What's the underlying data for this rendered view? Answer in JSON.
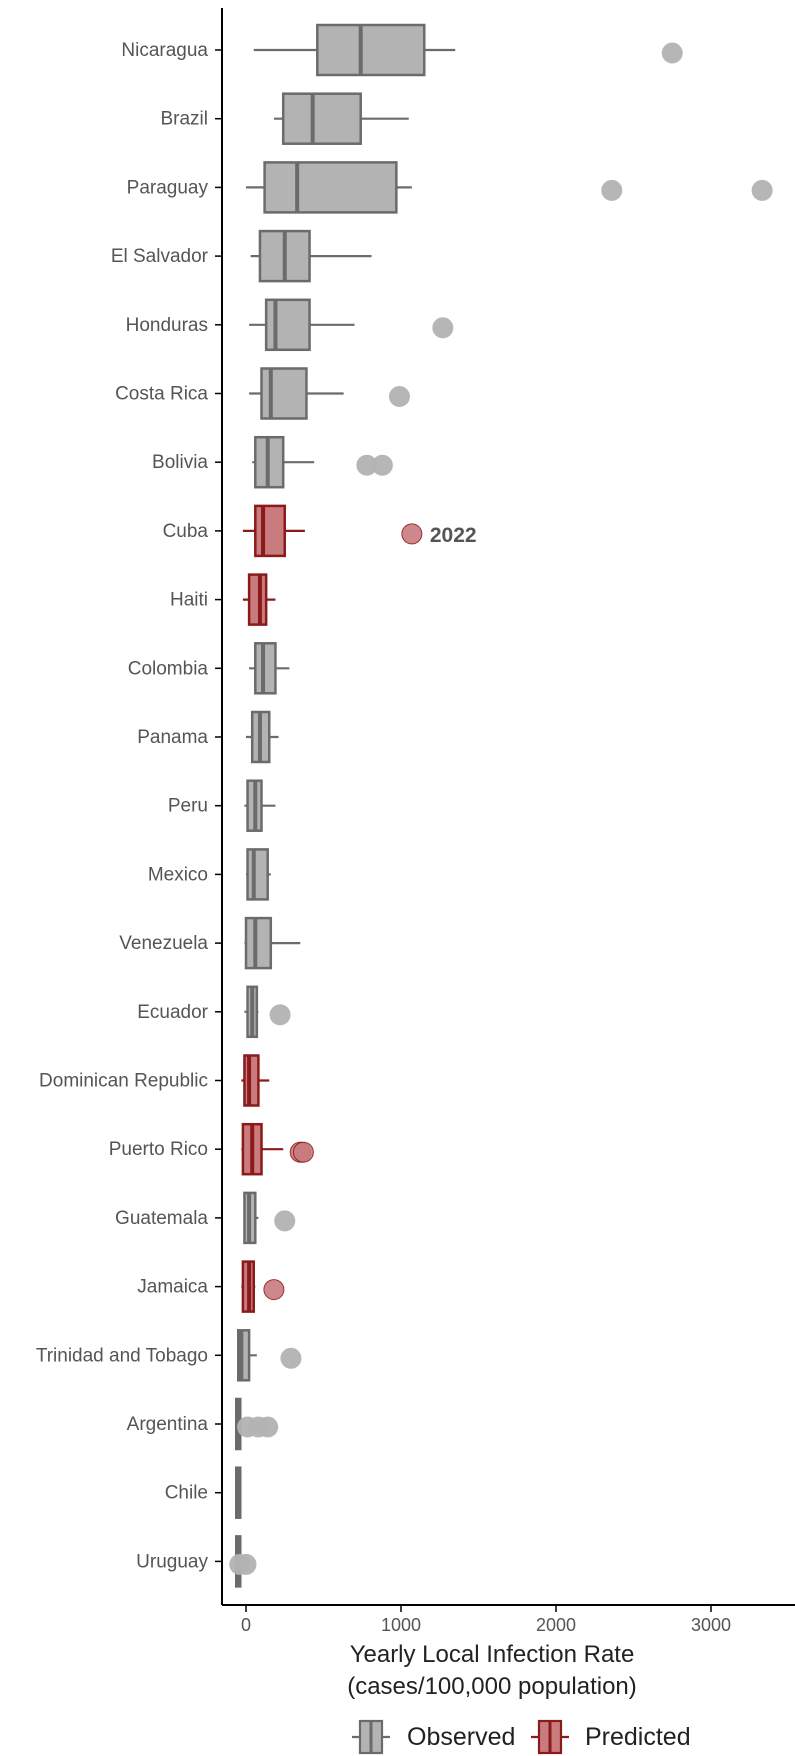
{
  "chart_data": {
    "type": "boxplot",
    "xlabel": [
      "Yearly Local Infection Rate",
      "(cases/100,000 population)"
    ],
    "xlim": [
      -150,
      3550
    ],
    "xticks": [
      0,
      1000,
      2000,
      3000
    ],
    "xtick_labels": [
      "0",
      "1000",
      "2000",
      "3000"
    ],
    "legend": {
      "position": "bottom",
      "items": [
        {
          "name": "Observed",
          "key": "observed"
        },
        {
          "name": "Predicted",
          "key": "predicted"
        }
      ]
    },
    "colors": {
      "observed_fill": "#b3b3b3",
      "observed_stroke": "#6b6b6b",
      "predicted_fill": "#c97b7e",
      "predicted_stroke": "#8b1a1a"
    },
    "annotations": [
      {
        "category": "Cuba",
        "x": 1070,
        "text": "2022"
      }
    ],
    "categories": [
      {
        "name": "Nicaragua",
        "group": "observed",
        "wmin": 50,
        "q1": 460,
        "median": 740,
        "q3": 1150,
        "wmax": 1350,
        "outliers": [
          2750
        ]
      },
      {
        "name": "Brazil",
        "group": "observed",
        "wmin": 180,
        "q1": 240,
        "median": 430,
        "q3": 740,
        "wmax": 1050,
        "outliers": []
      },
      {
        "name": "Paraguay",
        "group": "observed",
        "wmin": 0,
        "q1": 120,
        "median": 330,
        "q3": 970,
        "wmax": 1070,
        "outliers": [
          2360,
          3330
        ]
      },
      {
        "name": "El Salvador",
        "group": "observed",
        "wmin": 30,
        "q1": 90,
        "median": 250,
        "q3": 410,
        "wmax": 810,
        "outliers": []
      },
      {
        "name": "Honduras",
        "group": "observed",
        "wmin": 20,
        "q1": 130,
        "median": 190,
        "q3": 410,
        "wmax": 700,
        "outliers": [
          1270
        ]
      },
      {
        "name": "Costa Rica",
        "group": "observed",
        "wmin": 20,
        "q1": 100,
        "median": 160,
        "q3": 390,
        "wmax": 630,
        "outliers": [
          990
        ]
      },
      {
        "name": "Bolivia",
        "group": "observed",
        "wmin": 40,
        "q1": 60,
        "median": 140,
        "q3": 240,
        "wmax": 440,
        "outliers": [
          780,
          880
        ]
      },
      {
        "name": "Cuba",
        "group": "predicted",
        "wmin": -20,
        "q1": 60,
        "median": 110,
        "q3": 250,
        "wmax": 380,
        "outliers": [
          1070
        ]
      },
      {
        "name": "Haiti",
        "group": "predicted",
        "wmin": -20,
        "q1": 20,
        "median": 90,
        "q3": 130,
        "wmax": 190,
        "outliers": []
      },
      {
        "name": "Colombia",
        "group": "observed",
        "wmin": 20,
        "q1": 60,
        "median": 110,
        "q3": 190,
        "wmax": 280,
        "outliers": []
      },
      {
        "name": "Panama",
        "group": "observed",
        "wmin": 0,
        "q1": 40,
        "median": 90,
        "q3": 150,
        "wmax": 210,
        "outliers": []
      },
      {
        "name": "Peru",
        "group": "observed",
        "wmin": -10,
        "q1": 10,
        "median": 60,
        "q3": 100,
        "wmax": 190,
        "outliers": []
      },
      {
        "name": "Mexico",
        "group": "observed",
        "wmin": 0,
        "q1": 10,
        "median": 50,
        "q3": 140,
        "wmax": 160,
        "outliers": []
      },
      {
        "name": "Venezuela",
        "group": "observed",
        "wmin": -10,
        "q1": 0,
        "median": 60,
        "q3": 160,
        "wmax": 350,
        "outliers": []
      },
      {
        "name": "Ecuador",
        "group": "observed",
        "wmin": -10,
        "q1": 10,
        "median": 40,
        "q3": 70,
        "wmax": 80,
        "outliers": [
          220
        ]
      },
      {
        "name": "Dominican Republic",
        "group": "predicted",
        "wmin": -30,
        "q1": -10,
        "median": 20,
        "q3": 80,
        "wmax": 150,
        "outliers": []
      },
      {
        "name": "Puerto Rico",
        "group": "predicted",
        "wmin": -30,
        "q1": -20,
        "median": 40,
        "q3": 100,
        "wmax": 240,
        "outliers": [
          350,
          370
        ]
      },
      {
        "name": "Guatemala",
        "group": "observed",
        "wmin": -10,
        "q1": -10,
        "median": 20,
        "q3": 60,
        "wmax": 80,
        "outliers": [
          250
        ]
      },
      {
        "name": "Jamaica",
        "group": "predicted",
        "wmin": -30,
        "q1": -20,
        "median": 20,
        "q3": 50,
        "wmax": 60,
        "outliers": [
          180
        ]
      },
      {
        "name": "Trinidad and Tobago",
        "group": "observed",
        "wmin": -50,
        "q1": -50,
        "median": -30,
        "q3": 20,
        "wmax": 70,
        "outliers": [
          290
        ]
      },
      {
        "name": "Argentina",
        "group": "observed",
        "wmin": -50,
        "q1": -50,
        "median": -50,
        "q3": -50,
        "wmax": -50,
        "outliers": [
          10,
          80,
          140
        ]
      },
      {
        "name": "Chile",
        "group": "observed",
        "wmin": -50,
        "q1": -50,
        "median": -50,
        "q3": -50,
        "wmax": -50,
        "outliers": []
      },
      {
        "name": "Uruguay",
        "group": "observed",
        "wmin": -50,
        "q1": -50,
        "median": -50,
        "q3": -50,
        "wmax": -50,
        "outliers": [
          -40,
          0
        ]
      }
    ]
  }
}
